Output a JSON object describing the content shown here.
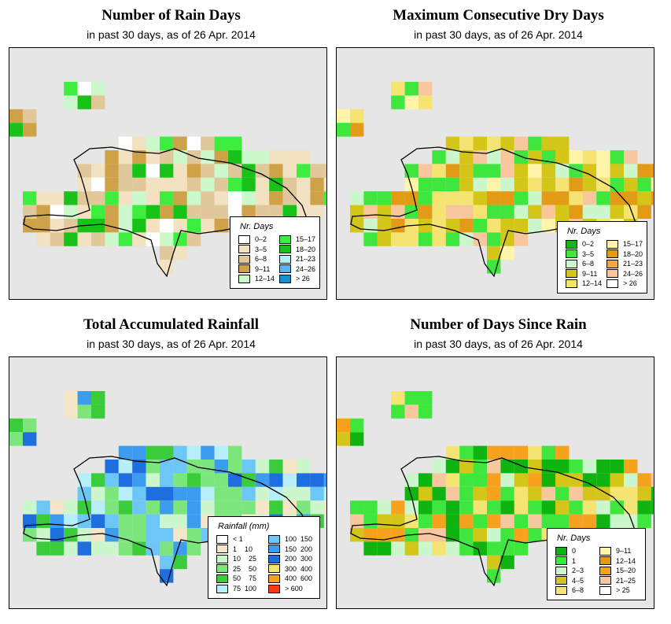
{
  "panels": [
    {
      "title": "Number of Rain Days",
      "subtitle": "in past 30 days, as of  26 Apr. 2014",
      "legend": {
        "title": "Nr. Days",
        "items": [
          {
            "label": "0–2",
            "color": "#ffffff"
          },
          {
            "label": "3–5",
            "color": "#f3e2c2"
          },
          {
            "label": "6–8",
            "color": "#e0c89a"
          },
          {
            "label": "9–11",
            "color": "#cfa24a"
          },
          {
            "label": "12–14",
            "color": "#ccf9cc"
          },
          {
            "label": "15–17",
            "color": "#3eee3e"
          },
          {
            "label": "18–20",
            "color": "#19c219"
          },
          {
            "label": "21–23",
            "color": "#b6eff9"
          },
          {
            "label": "24–26",
            "color": "#5ab4f0"
          },
          {
            "label": "> 26",
            "color": "#1492d0"
          }
        ]
      }
    },
    {
      "title": "Maximum Consecutive Dry Days",
      "subtitle": "in past 30 days, as of  26 Apr. 2014",
      "legend": {
        "title": "Nr. Days",
        "items": [
          {
            "label": "0–2",
            "color": "#19b419"
          },
          {
            "label": "3–5",
            "color": "#3ee63e"
          },
          {
            "label": "6–8",
            "color": "#ccf6cc"
          },
          {
            "label": "9–11",
            "color": "#d4c618"
          },
          {
            "label": "12–14",
            "color": "#f6e472"
          },
          {
            "label": "15–17",
            "color": "#fff4a8"
          },
          {
            "label": "18–20",
            "color": "#e39a14"
          },
          {
            "label": "21–23",
            "color": "#f6a73c"
          },
          {
            "label": "24–26",
            "color": "#f9c79e"
          },
          {
            "label": "> 26",
            "color": "#ffffff"
          }
        ]
      }
    },
    {
      "title": "Total Accumulated Rainfall",
      "subtitle": "in past 30 days, as of  26 Apr. 2014",
      "legend": {
        "title": "Rainfall (mm)",
        "items": [
          {
            "label": "< 1",
            "color": "#ffffff"
          },
          {
            "label": "1    10",
            "color": "#f6e6c8"
          },
          {
            "label": "10    25",
            "color": "#ccf6cc"
          },
          {
            "label": "25    50",
            "color": "#7ce67c"
          },
          {
            "label": "50    75",
            "color": "#3acc3a"
          },
          {
            "label": "75  100",
            "color": "#b6eff9"
          },
          {
            "label": "100  150",
            "color": "#6cc6f6"
          },
          {
            "label": "150  200",
            "color": "#3c9cf0"
          },
          {
            "label": "200  300",
            "color": "#1e6ee0"
          },
          {
            "label": "300  400",
            "color": "#f6e472"
          },
          {
            "label": "400  600",
            "color": "#f6a21c"
          },
          {
            "label": "> 600",
            "color": "#f63c14"
          }
        ]
      }
    },
    {
      "title": "Number of Days Since Rain",
      "subtitle": "in past 30 days, as of  26 Apr. 2014",
      "legend": {
        "title": "Nr. Days",
        "items": [
          {
            "label": "0",
            "color": "#10b410"
          },
          {
            "label": "1",
            "color": "#3ee63e"
          },
          {
            "label": "2–3",
            "color": "#ccf6cc"
          },
          {
            "label": "4–5",
            "color": "#d4c618"
          },
          {
            "label": "6–8",
            "color": "#f6e472"
          },
          {
            "label": "9–11",
            "color": "#fff4a8"
          },
          {
            "label": "12–14",
            "color": "#e39a14"
          },
          {
            "label": "15–20",
            "color": "#f6a21c"
          },
          {
            "label": "21–25",
            "color": "#f9c79e"
          },
          {
            "label": "> 25",
            "color": "#ffffff"
          }
        ]
      }
    }
  ]
}
